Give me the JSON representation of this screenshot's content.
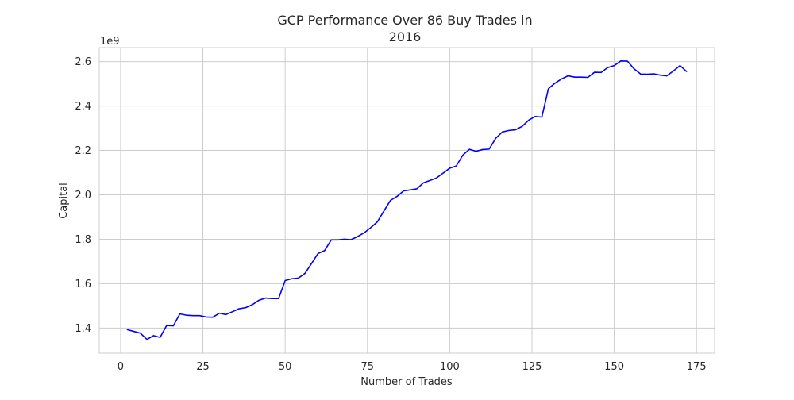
{
  "chart_data": {
    "type": "line",
    "title_line1": "GCP Performance Over 86 Buy Trades in",
    "title_line2": "2016",
    "xlabel": "Number of Trades",
    "ylabel": "Capital",
    "y_offset_label": "1e9",
    "xlim": [
      -6.5,
      180.5
    ],
    "ylim": [
      1.287,
      2.663
    ],
    "grid": true,
    "x_ticks": [
      0,
      25,
      50,
      75,
      100,
      125,
      150,
      175
    ],
    "x_tick_labels": [
      "0",
      "25",
      "50",
      "75",
      "100",
      "125",
      "150",
      "175"
    ],
    "y_ticks": [
      1.4,
      1.6,
      1.8,
      2.0,
      2.2,
      2.4,
      2.6
    ],
    "y_tick_labels": [
      "1.4",
      "1.6",
      "1.8",
      "2.0",
      "2.2",
      "2.4",
      "2.6"
    ],
    "line_color": "#0000ff",
    "series": [
      {
        "x": [
          2,
          4,
          6,
          8,
          10,
          12,
          14,
          16,
          18,
          20,
          22,
          24,
          26,
          28,
          30,
          32,
          34,
          36,
          38,
          40,
          42,
          44,
          46,
          48,
          50,
          52,
          54,
          56,
          58,
          60,
          62,
          64,
          66,
          68,
          70,
          72,
          74,
          76,
          78,
          80,
          82,
          84,
          86,
          88,
          90,
          92,
          94,
          96,
          98,
          100,
          102,
          104,
          106,
          108,
          110,
          112,
          114,
          116,
          118,
          120,
          122,
          124,
          126,
          128,
          130,
          132,
          134,
          136,
          138,
          140,
          142,
          144,
          146,
          148,
          150,
          152,
          154,
          156,
          158,
          160,
          162,
          164,
          166,
          168,
          170,
          172
        ],
        "y": [
          1.393,
          1.385,
          1.377,
          1.349,
          1.366,
          1.358,
          1.412,
          1.41,
          1.464,
          1.458,
          1.456,
          1.456,
          1.45,
          1.449,
          1.467,
          1.461,
          1.474,
          1.487,
          1.492,
          1.505,
          1.525,
          1.535,
          1.533,
          1.533,
          1.614,
          1.622,
          1.625,
          1.646,
          1.69,
          1.736,
          1.749,
          1.797,
          1.797,
          1.8,
          1.798,
          1.812,
          1.829,
          1.852,
          1.878,
          1.927,
          1.975,
          1.993,
          2.018,
          2.022,
          2.027,
          2.054,
          2.065,
          2.076,
          2.098,
          2.12,
          2.13,
          2.179,
          2.205,
          2.196,
          2.204,
          2.206,
          2.255,
          2.283,
          2.29,
          2.293,
          2.308,
          2.336,
          2.353,
          2.35,
          2.478,
          2.503,
          2.522,
          2.536,
          2.53,
          2.53,
          2.529,
          2.552,
          2.551,
          2.573,
          2.582,
          2.603,
          2.602,
          2.568,
          2.544,
          2.543,
          2.545,
          2.539,
          2.536,
          2.558,
          2.582,
          2.555
        ]
      }
    ]
  }
}
